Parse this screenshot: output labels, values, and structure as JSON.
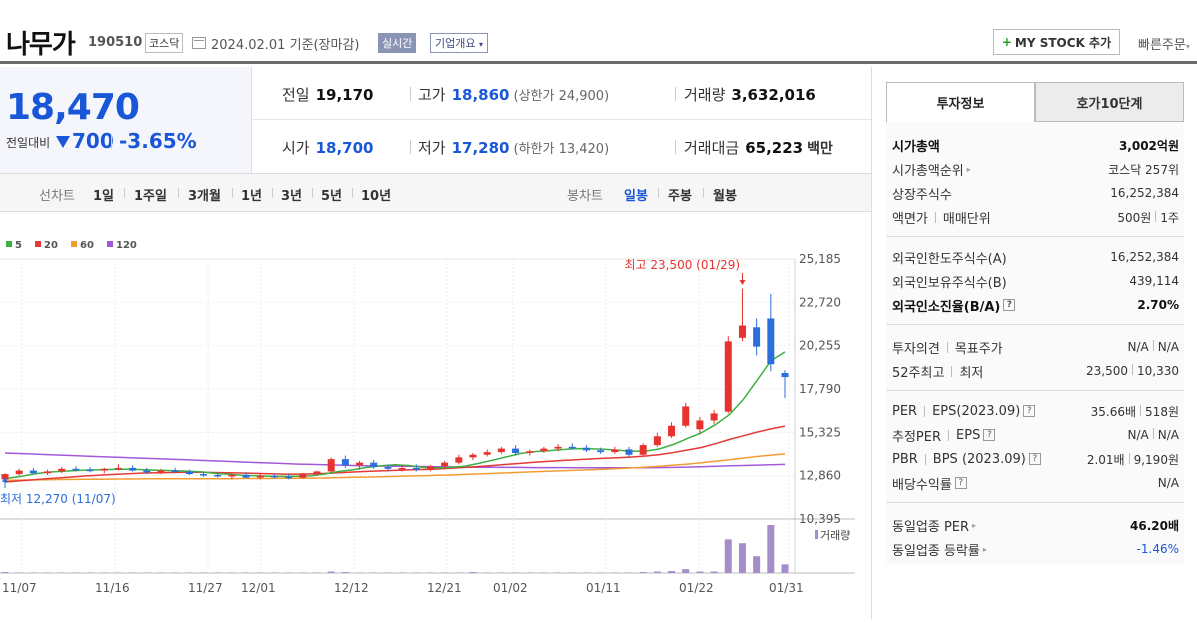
{
  "header": {
    "stock_name": "나무가",
    "stock_code": "190510",
    "market": "코스닥",
    "date_text": "2024.02.01  기준(장마감)",
    "realtime_label": "실시간",
    "company_label": "기업개요",
    "mystock_label": "MY STOCK 추가",
    "quick_order_label": "빠른주문"
  },
  "price": {
    "current": "18,470",
    "change_label": "전일대비",
    "change": "700",
    "change_rate": "-3.65%",
    "color": "#1a57d8"
  },
  "quote": {
    "prev_close": {
      "label": "전일",
      "value": "19,170"
    },
    "high": {
      "label": "고가",
      "value": "18,860",
      "sub": "(상한가 24,900)"
    },
    "volume": {
      "label": "거래량",
      "value": "3,632,016"
    },
    "open": {
      "label": "시가",
      "value": "18,700"
    },
    "low": {
      "label": "저가",
      "value": "17,280",
      "sub": "(하한가 13,420)"
    },
    "amount": {
      "label": "거래대금",
      "value": "65,223",
      "unit": "백만"
    }
  },
  "period_tabs": {
    "line_label": "선차트",
    "line_items": [
      "1일",
      "1주일",
      "3개월",
      "1년",
      "3년",
      "5년",
      "10년"
    ],
    "candle_label": "봉차트",
    "candle_items": [
      "일봉",
      "주봉",
      "월봉"
    ],
    "active_candle": "일봉"
  },
  "chart_data": {
    "type": "candlestick",
    "legend": [
      {
        "name": "5",
        "color": "#3cb043"
      },
      {
        "name": "20",
        "color": "#e53935"
      },
      {
        "name": "60",
        "color": "#f39c33"
      },
      {
        "name": "120",
        "color": "#a259d9"
      }
    ],
    "y_ticks": [
      "25,185",
      "22,720",
      "20,255",
      "17,790",
      "15,325",
      "12,860",
      "10,395"
    ],
    "ylim": [
      10395,
      25185
    ],
    "x_ticks": [
      "11/07",
      "11/16",
      "11/27",
      "12/01",
      "12/12",
      "12/21",
      "01/02",
      "01/11",
      "01/22",
      "01/31"
    ],
    "max_annotation": "최고 23,500 (01/29)",
    "min_annotation": "최저 12,270 (11/07)",
    "volume_label": "거래량",
    "candles": [
      {
        "o": 12650,
        "h": 13000,
        "l": 12270,
        "c": 12950
      },
      {
        "o": 12950,
        "h": 13250,
        "l": 12850,
        "c": 13150
      },
      {
        "o": 13150,
        "h": 13300,
        "l": 12950,
        "c": 13000
      },
      {
        "o": 13000,
        "h": 13200,
        "l": 12900,
        "c": 13100
      },
      {
        "o": 13100,
        "h": 13350,
        "l": 13000,
        "c": 13250
      },
      {
        "o": 13250,
        "h": 13400,
        "l": 13100,
        "c": 13200
      },
      {
        "o": 13200,
        "h": 13350,
        "l": 13050,
        "c": 13150
      },
      {
        "o": 13150,
        "h": 13300,
        "l": 13000,
        "c": 13250
      },
      {
        "o": 13250,
        "h": 13500,
        "l": 13150,
        "c": 13300
      },
      {
        "o": 13300,
        "h": 13450,
        "l": 13100,
        "c": 13150
      },
      {
        "o": 13150,
        "h": 13300,
        "l": 12950,
        "c": 13050
      },
      {
        "o": 13050,
        "h": 13250,
        "l": 12950,
        "c": 13150
      },
      {
        "o": 13150,
        "h": 13300,
        "l": 13000,
        "c": 13100
      },
      {
        "o": 13100,
        "h": 13200,
        "l": 12900,
        "c": 12950
      },
      {
        "o": 12950,
        "h": 13100,
        "l": 12800,
        "c": 12900
      },
      {
        "o": 12900,
        "h": 13050,
        "l": 12750,
        "c": 12850
      },
      {
        "o": 12850,
        "h": 13000,
        "l": 12650,
        "c": 12900
      },
      {
        "o": 12900,
        "h": 13050,
        "l": 12700,
        "c": 12750
      },
      {
        "o": 12750,
        "h": 12950,
        "l": 12650,
        "c": 12850
      },
      {
        "o": 12850,
        "h": 12950,
        "l": 12700,
        "c": 12800
      },
      {
        "o": 12800,
        "h": 12950,
        "l": 12650,
        "c": 12750
      },
      {
        "o": 12750,
        "h": 13000,
        "l": 12700,
        "c": 12950
      },
      {
        "o": 12950,
        "h": 13150,
        "l": 12850,
        "c": 13100
      },
      {
        "o": 13100,
        "h": 13900,
        "l": 13000,
        "c": 13800
      },
      {
        "o": 13800,
        "h": 14000,
        "l": 13300,
        "c": 13450
      },
      {
        "o": 13450,
        "h": 13700,
        "l": 13200,
        "c": 13600
      },
      {
        "o": 13600,
        "h": 13750,
        "l": 13250,
        "c": 13350
      },
      {
        "o": 13350,
        "h": 13500,
        "l": 13100,
        "c": 13250
      },
      {
        "o": 13250,
        "h": 13450,
        "l": 13100,
        "c": 13300
      },
      {
        "o": 13300,
        "h": 13500,
        "l": 13100,
        "c": 13200
      },
      {
        "o": 13200,
        "h": 13450,
        "l": 13100,
        "c": 13400
      },
      {
        "o": 13400,
        "h": 13700,
        "l": 13300,
        "c": 13600
      },
      {
        "o": 13600,
        "h": 14050,
        "l": 13500,
        "c": 13900
      },
      {
        "o": 13900,
        "h": 14150,
        "l": 13750,
        "c": 14050
      },
      {
        "o": 14050,
        "h": 14350,
        "l": 13950,
        "c": 14200
      },
      {
        "o": 14200,
        "h": 14500,
        "l": 14100,
        "c": 14400
      },
      {
        "o": 14400,
        "h": 14600,
        "l": 14000,
        "c": 14150
      },
      {
        "o": 14150,
        "h": 14350,
        "l": 14000,
        "c": 14250
      },
      {
        "o": 14250,
        "h": 14500,
        "l": 14150,
        "c": 14400
      },
      {
        "o": 14400,
        "h": 14650,
        "l": 14250,
        "c": 14500
      },
      {
        "o": 14500,
        "h": 14700,
        "l": 14350,
        "c": 14450
      },
      {
        "o": 14450,
        "h": 14600,
        "l": 14200,
        "c": 14300
      },
      {
        "o": 14300,
        "h": 14450,
        "l": 14100,
        "c": 14200
      },
      {
        "o": 14200,
        "h": 14500,
        "l": 14100,
        "c": 14350
      },
      {
        "o": 14350,
        "h": 14500,
        "l": 13950,
        "c": 14050
      },
      {
        "o": 14050,
        "h": 14700,
        "l": 13950,
        "c": 14600
      },
      {
        "o": 14600,
        "h": 15300,
        "l": 14500,
        "c": 15100
      },
      {
        "o": 15100,
        "h": 15900,
        "l": 15000,
        "c": 15700
      },
      {
        "o": 15700,
        "h": 17000,
        "l": 15600,
        "c": 16800
      },
      {
        "o": 15500,
        "h": 16200,
        "l": 15200,
        "c": 16000
      },
      {
        "o": 16000,
        "h": 16600,
        "l": 15800,
        "c": 16400
      },
      {
        "o": 16500,
        "h": 20800,
        "l": 16400,
        "c": 20500
      },
      {
        "o": 20700,
        "h": 23500,
        "l": 20500,
        "c": 21400
      },
      {
        "o": 21300,
        "h": 21800,
        "l": 19700,
        "c": 20200
      },
      {
        "o": 21800,
        "h": 23200,
        "l": 18800,
        "c": 19200
      },
      {
        "o": 18700,
        "h": 18860,
        "l": 17280,
        "c": 18470
      }
    ],
    "volumes": [
      0.02,
      0.01,
      0.01,
      0.01,
      0.01,
      0.01,
      0.01,
      0.01,
      0.01,
      0.01,
      0.01,
      0.01,
      0.01,
      0.01,
      0.01,
      0.01,
      0.01,
      0.01,
      0.01,
      0.01,
      0.01,
      0.01,
      0.01,
      0.03,
      0.02,
      0.01,
      0.01,
      0.01,
      0.01,
      0.01,
      0.01,
      0.01,
      0.01,
      0.02,
      0.01,
      0.01,
      0.01,
      0.01,
      0.01,
      0.01,
      0.01,
      0.01,
      0.01,
      0.01,
      0.01,
      0.02,
      0.03,
      0.04,
      0.08,
      0.03,
      0.03,
      0.7,
      0.62,
      0.35,
      1.0,
      0.18
    ],
    "ma5": [
      12700,
      12800,
      12950,
      13050,
      13100,
      13150,
      13180,
      13200,
      13220,
      13230,
      13200,
      13170,
      13150,
      13120,
      13080,
      13000,
      12940,
      12880,
      12850,
      12830,
      12820,
      12830,
      12850,
      12960,
      13100,
      13200,
      13330,
      13420,
      13480,
      13440,
      13330,
      13300,
      13330,
      13400,
      13560,
      13740,
      13930,
      14120,
      14230,
      14280,
      14340,
      14400,
      14390,
      14360,
      14310,
      14250,
      14260,
      14380,
      14640,
      14980,
      15300,
      15760,
      16330,
      17180,
      18280,
      19400,
      19900
    ],
    "ma20": [
      12500,
      12560,
      12620,
      12680,
      12740,
      12800,
      12850,
      12900,
      12940,
      12980,
      13010,
      13030,
      13040,
      13050,
      13050,
      13040,
      13030,
      13010,
      12990,
      12970,
      12950,
      12950,
      12960,
      12990,
      13030,
      13070,
      13100,
      13130,
      13160,
      13190,
      13210,
      13240,
      13280,
      13330,
      13380,
      13440,
      13500,
      13560,
      13620,
      13670,
      13720,
      13770,
      13810,
      13850,
      13880,
      13920,
      13980,
      14060,
      14180,
      14320,
      14460,
      14680,
      14920,
      15130,
      15340,
      15520,
      15680
    ],
    "ma60": [
      12600,
      12610,
      12620,
      12630,
      12640,
      12650,
      12660,
      12660,
      12670,
      12670,
      12680,
      12680,
      12680,
      12680,
      12690,
      12690,
      12690,
      12700,
      12700,
      12700,
      12710,
      12710,
      12720,
      12730,
      12750,
      12770,
      12780,
      12800,
      12820,
      12840,
      12860,
      12880,
      12900,
      12930,
      12960,
      12990,
      13020,
      13050,
      13080,
      13110,
      13140,
      13170,
      13200,
      13230,
      13260,
      13300,
      13350,
      13400,
      13460,
      13520,
      13590,
      13680,
      13770,
      13860,
      13950,
      14030,
      14100
    ],
    "ma120": [
      14150,
      14120,
      14090,
      14060,
      14030,
      14000,
      13970,
      13940,
      13910,
      13880,
      13850,
      13820,
      13790,
      13760,
      13730,
      13700,
      13670,
      13640,
      13610,
      13580,
      13550,
      13520,
      13500,
      13480,
      13460,
      13440,
      13420,
      13410,
      13400,
      13390,
      13380,
      13370,
      13360,
      13350,
      13340,
      13340,
      13330,
      13330,
      13320,
      13320,
      13320,
      13310,
      13310,
      13310,
      13310,
      13310,
      13310,
      13320,
      13330,
      13350,
      13370,
      13400,
      13420,
      13440,
      13460,
      13480,
      13500
    ]
  },
  "panel": {
    "tab_on": "투자정보",
    "tab_off": "호가10단계",
    "rows": {
      "mcap": {
        "label": "시가총액",
        "value": "3,002억원"
      },
      "mcap_rank": {
        "label": "시가총액순위",
        "value": "코스닥 257위"
      },
      "shares": {
        "label": "상장주식수",
        "value": "16,252,384"
      },
      "face": {
        "label": "액면가",
        "label2": "매매단위",
        "value": "500원",
        "value2": "1주"
      },
      "foreign_limit": {
        "label": "외국인한도주식수(A)",
        "value": "16,252,384"
      },
      "foreign_hold": {
        "label": "외국인보유주식수(B)",
        "value": "439,114"
      },
      "foreign_rate": {
        "label": "외국인소진율(B/A)",
        "value": "2.70%"
      },
      "opinion": {
        "label": "투자의견",
        "label2": "목표주가",
        "value": "N/A",
        "value2": "N/A"
      },
      "w52": {
        "label": "52주최고",
        "label2": "최저",
        "value": "23,500",
        "value2": "10,330"
      },
      "per": {
        "label": "PER",
        "label2": "EPS(2023.09)",
        "value": "35.66배",
        "value2": "518원"
      },
      "eper": {
        "label": "추정PER",
        "label2": "EPS",
        "value": "N/A",
        "value2": "N/A"
      },
      "pbr": {
        "label": "PBR",
        "label2": "BPS (2023.09)",
        "value": "2.01배",
        "value2": "9,190원"
      },
      "div": {
        "label": "배당수익률",
        "value": "N/A"
      },
      "sector_per": {
        "label": "동일업종 PER",
        "value": "46.20배"
      },
      "sector_rate": {
        "label": "동일업종 등락률",
        "value": "-1.46%"
      }
    }
  }
}
